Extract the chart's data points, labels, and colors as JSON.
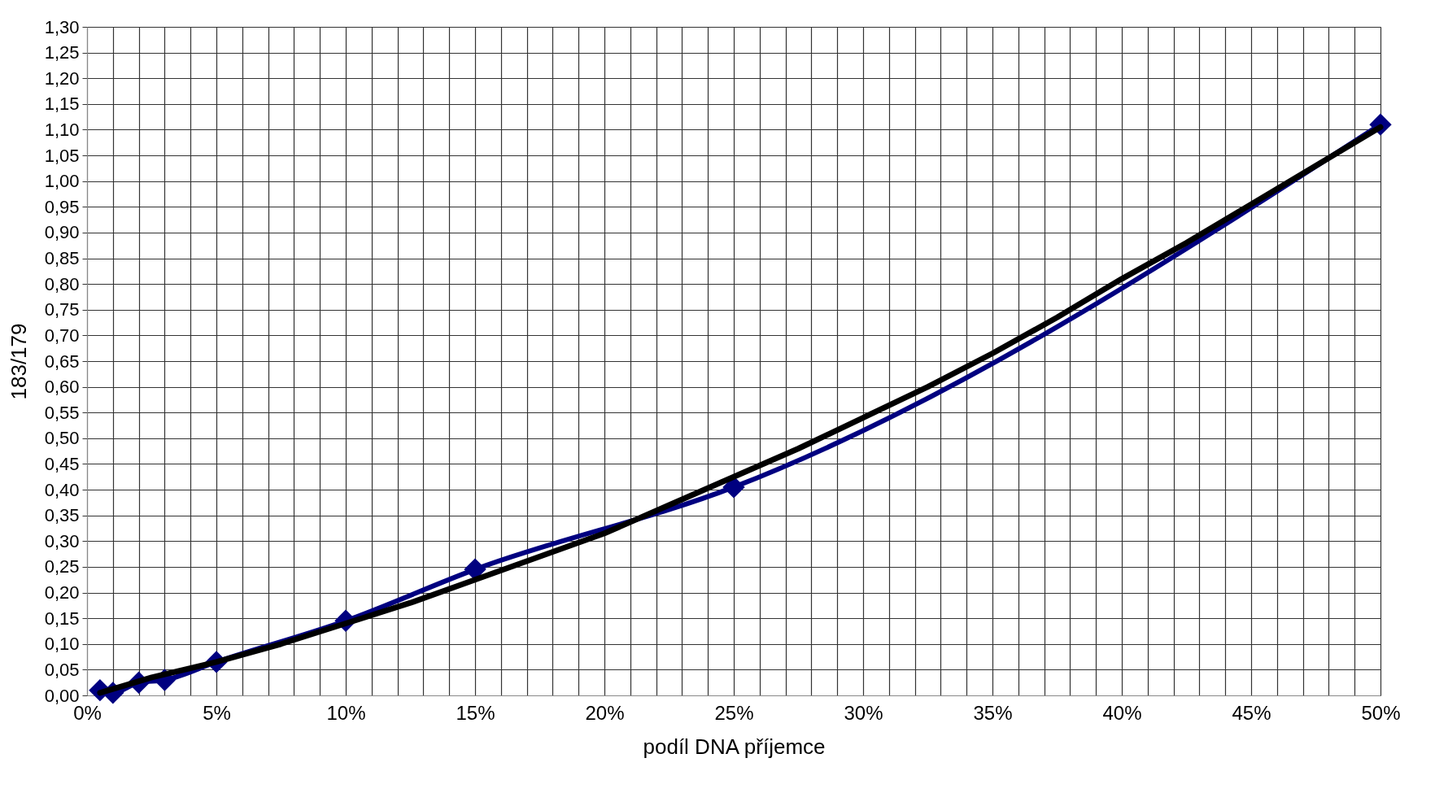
{
  "chart_data": {
    "type": "line",
    "xlabel": "podíl DNA příjemce",
    "ylabel": "183/179",
    "xlim": [
      0,
      50
    ],
    "ylim": [
      0,
      1.3
    ],
    "xticks": [
      {
        "value": 0,
        "label": "0%"
      },
      {
        "value": 1,
        "label": null
      },
      {
        "value": 2,
        "label": null
      },
      {
        "value": 3,
        "label": null
      },
      {
        "value": 4,
        "label": null
      },
      {
        "value": 5,
        "label": "5%"
      },
      {
        "value": 6,
        "label": null
      },
      {
        "value": 7,
        "label": null
      },
      {
        "value": 8,
        "label": null
      },
      {
        "value": 9,
        "label": null
      },
      {
        "value": 10,
        "label": "10%"
      },
      {
        "value": 11,
        "label": null
      },
      {
        "value": 12,
        "label": null
      },
      {
        "value": 13,
        "label": null
      },
      {
        "value": 14,
        "label": null
      },
      {
        "value": 15,
        "label": "15%"
      },
      {
        "value": 16,
        "label": null
      },
      {
        "value": 17,
        "label": null
      },
      {
        "value": 18,
        "label": null
      },
      {
        "value": 19,
        "label": null
      },
      {
        "value": 20,
        "label": "20%"
      },
      {
        "value": 21,
        "label": null
      },
      {
        "value": 22,
        "label": null
      },
      {
        "value": 23,
        "label": null
      },
      {
        "value": 24,
        "label": null
      },
      {
        "value": 25,
        "label": "25%"
      },
      {
        "value": 26,
        "label": null
      },
      {
        "value": 27,
        "label": null
      },
      {
        "value": 28,
        "label": null
      },
      {
        "value": 29,
        "label": null
      },
      {
        "value": 30,
        "label": "30%"
      },
      {
        "value": 31,
        "label": null
      },
      {
        "value": 32,
        "label": null
      },
      {
        "value": 33,
        "label": null
      },
      {
        "value": 34,
        "label": null
      },
      {
        "value": 35,
        "label": "35%"
      },
      {
        "value": 36,
        "label": null
      },
      {
        "value": 37,
        "label": null
      },
      {
        "value": 38,
        "label": null
      },
      {
        "value": 39,
        "label": null
      },
      {
        "value": 40,
        "label": "40%"
      },
      {
        "value": 41,
        "label": null
      },
      {
        "value": 42,
        "label": null
      },
      {
        "value": 43,
        "label": null
      },
      {
        "value": 44,
        "label": null
      },
      {
        "value": 45,
        "label": "45%"
      },
      {
        "value": 46,
        "label": null
      },
      {
        "value": 47,
        "label": null
      },
      {
        "value": 48,
        "label": null
      },
      {
        "value": 49,
        "label": null
      },
      {
        "value": 50,
        "label": "50%"
      }
    ],
    "yticks": [
      {
        "value": 0,
        "label": "0,00"
      },
      {
        "value": 0.05,
        "label": "0,05"
      },
      {
        "value": 0.1,
        "label": "0,10"
      },
      {
        "value": 0.15,
        "label": "0,15"
      },
      {
        "value": 0.2,
        "label": "0,20"
      },
      {
        "value": 0.25,
        "label": "0,25"
      },
      {
        "value": 0.3,
        "label": "0,30"
      },
      {
        "value": 0.35,
        "label": "0,35"
      },
      {
        "value": 0.4,
        "label": "0,40"
      },
      {
        "value": 0.45,
        "label": "0,45"
      },
      {
        "value": 0.5,
        "label": "0,50"
      },
      {
        "value": 0.55,
        "label": "0,55"
      },
      {
        "value": 0.6,
        "label": "0,60"
      },
      {
        "value": 0.65,
        "label": "0,65"
      },
      {
        "value": 0.7,
        "label": "0,70"
      },
      {
        "value": 0.75,
        "label": "0,75"
      },
      {
        "value": 0.8,
        "label": "0,80"
      },
      {
        "value": 0.85,
        "label": "0,85"
      },
      {
        "value": 0.9,
        "label": "0,90"
      },
      {
        "value": 0.95,
        "label": "0,95"
      },
      {
        "value": 1,
        "label": "1,00"
      },
      {
        "value": 1.05,
        "label": "1,05"
      },
      {
        "value": 1.1,
        "label": "1,10"
      },
      {
        "value": 1.15,
        "label": "1,15"
      },
      {
        "value": 1.2,
        "label": "1,20"
      },
      {
        "value": 1.25,
        "label": "1,25"
      },
      {
        "value": 1.3,
        "label": "1,30"
      }
    ],
    "grid": true,
    "series": [
      {
        "marker": "diamond",
        "color": "#000080",
        "x": [
          0.5,
          1,
          2,
          3,
          5,
          10,
          15,
          25,
          50
        ],
        "values": [
          0.01,
          0.005,
          0.025,
          0.03,
          0.065,
          0.145,
          0.245,
          0.405,
          1.11
        ]
      },
      {
        "marker": "none",
        "color": "#000000",
        "x": [
          0.5,
          2.5,
          5,
          7.5,
          10,
          12.5,
          15,
          17.5,
          20,
          22.5,
          25,
          27.5,
          30,
          32.5,
          35,
          37.5,
          40,
          42.5,
          45,
          47.5,
          50
        ],
        "values": [
          0.005,
          0.035,
          0.065,
          0.1,
          0.14,
          0.18,
          0.225,
          0.27,
          0.315,
          0.37,
          0.425,
          0.48,
          0.54,
          0.6,
          0.665,
          0.735,
          0.81,
          0.88,
          0.955,
          1.03,
          1.105
        ]
      }
    ]
  }
}
